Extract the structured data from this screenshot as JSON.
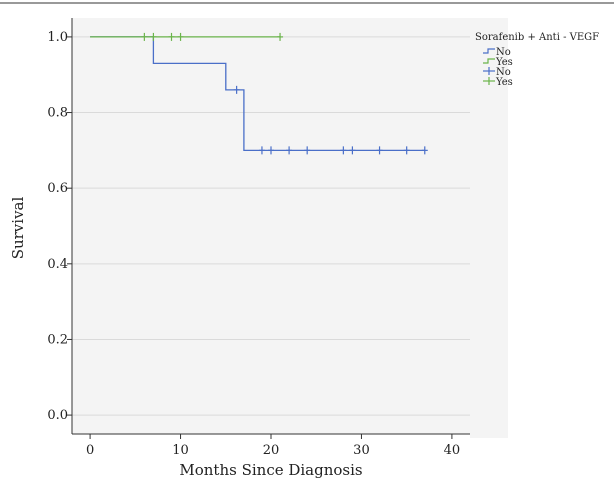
{
  "chart_data": {
    "type": "line",
    "title": "",
    "xlabel": "Months Since Diagnosis",
    "ylabel": "Survival",
    "xlim": [
      -2,
      42
    ],
    "ylim": [
      -0.05,
      1.05
    ],
    "x_ticks": [
      0,
      10,
      20,
      30,
      40
    ],
    "y_ticks": [
      0.0,
      0.2,
      0.4,
      0.6,
      0.8,
      1.0
    ],
    "x_tick_labels": [
      "0",
      "10",
      "20",
      "30",
      "40"
    ],
    "y_tick_labels": [
      "0.0",
      "0.2",
      "0.4",
      "0.6",
      "0.8",
      "1.0"
    ],
    "grid": "horizontal",
    "legend_position": "right",
    "legend_title": "Sorafenib + Anti - VEGF",
    "series": [
      {
        "name": "No",
        "color": "#4a6fc8",
        "step_points": [
          [
            0,
            1.0
          ],
          [
            7,
            1.0
          ],
          [
            7,
            0.93
          ],
          [
            15,
            0.93
          ],
          [
            15,
            0.86
          ],
          [
            17,
            0.86
          ],
          [
            17,
            0.7
          ],
          [
            37,
            0.7
          ]
        ],
        "censored": [
          [
            16.2,
            0.86
          ],
          [
            19,
            0.7
          ],
          [
            20,
            0.7
          ],
          [
            22,
            0.7
          ],
          [
            24,
            0.7
          ],
          [
            28,
            0.7
          ],
          [
            29,
            0.7
          ],
          [
            32,
            0.7
          ],
          [
            35,
            0.7
          ],
          [
            37,
            0.7
          ]
        ]
      },
      {
        "name": "Yes",
        "color": "#6ab44a",
        "step_points": [
          [
            0,
            1.0
          ],
          [
            21,
            1.0
          ]
        ],
        "censored": [
          [
            6,
            1.0
          ],
          [
            7,
            1.0
          ],
          [
            9,
            1.0
          ],
          [
            10,
            1.0
          ],
          [
            21,
            1.0
          ]
        ]
      }
    ],
    "legend_entries": [
      {
        "label": "No",
        "symbol": "step",
        "color": "#4a6fc8"
      },
      {
        "label": "Yes",
        "symbol": "step",
        "color": "#6ab44a"
      },
      {
        "label": "No",
        "symbol": "censor",
        "color": "#4a6fc8"
      },
      {
        "label": "Yes",
        "symbol": "censor",
        "color": "#6ab44a"
      }
    ]
  }
}
